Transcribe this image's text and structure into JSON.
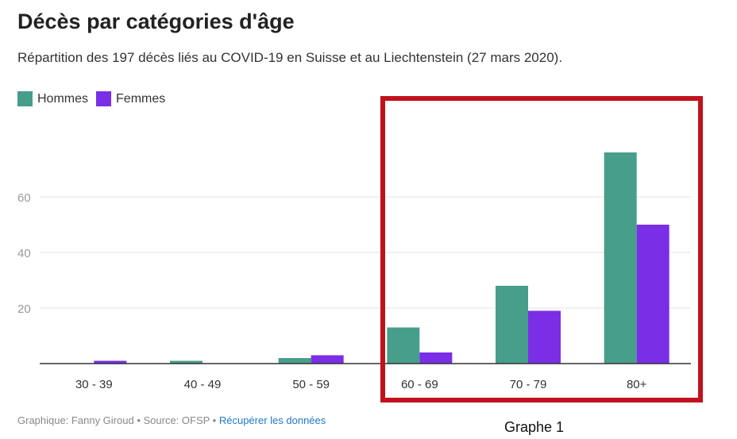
{
  "header": {
    "title": "Décès par catégories d'âge",
    "subtitle": "Répartition des 197 décès liés au COVID-19 en Suisse et au Liechtenstein (27 mars 2020)."
  },
  "legend": [
    {
      "label": "Hommes",
      "color": "#479e8a"
    },
    {
      "label": "Femmes",
      "color": "#7a2ee6"
    }
  ],
  "footer": {
    "credit": "Graphique: Fanny Giroud",
    "separator": " • ",
    "source": "Source: OFSP",
    "link": "Récupérer les données"
  },
  "annotation": {
    "caption": "Graphe 1"
  },
  "chart_data": {
    "type": "bar",
    "title": "Décès par catégories d'âge",
    "subtitle": "Répartition des 197 décès liés au COVID-19 en Suisse et au Liechtenstein (27 mars 2020).",
    "categories": [
      "30 - 39",
      "40 - 49",
      "50 - 59",
      "60 - 69",
      "70 - 79",
      "80+"
    ],
    "series": [
      {
        "name": "Hommes",
        "color": "#479e8a",
        "values": [
          0,
          1,
          2,
          13,
          28,
          76
        ]
      },
      {
        "name": "Femmes",
        "color": "#7a2ee6",
        "values": [
          1,
          0,
          3,
          4,
          19,
          50
        ]
      }
    ],
    "yticks": [
      20,
      40,
      60
    ],
    "ylim": [
      0,
      80
    ],
    "grid": true,
    "legend_position": "top-left",
    "xlabel": "",
    "ylabel": ""
  }
}
